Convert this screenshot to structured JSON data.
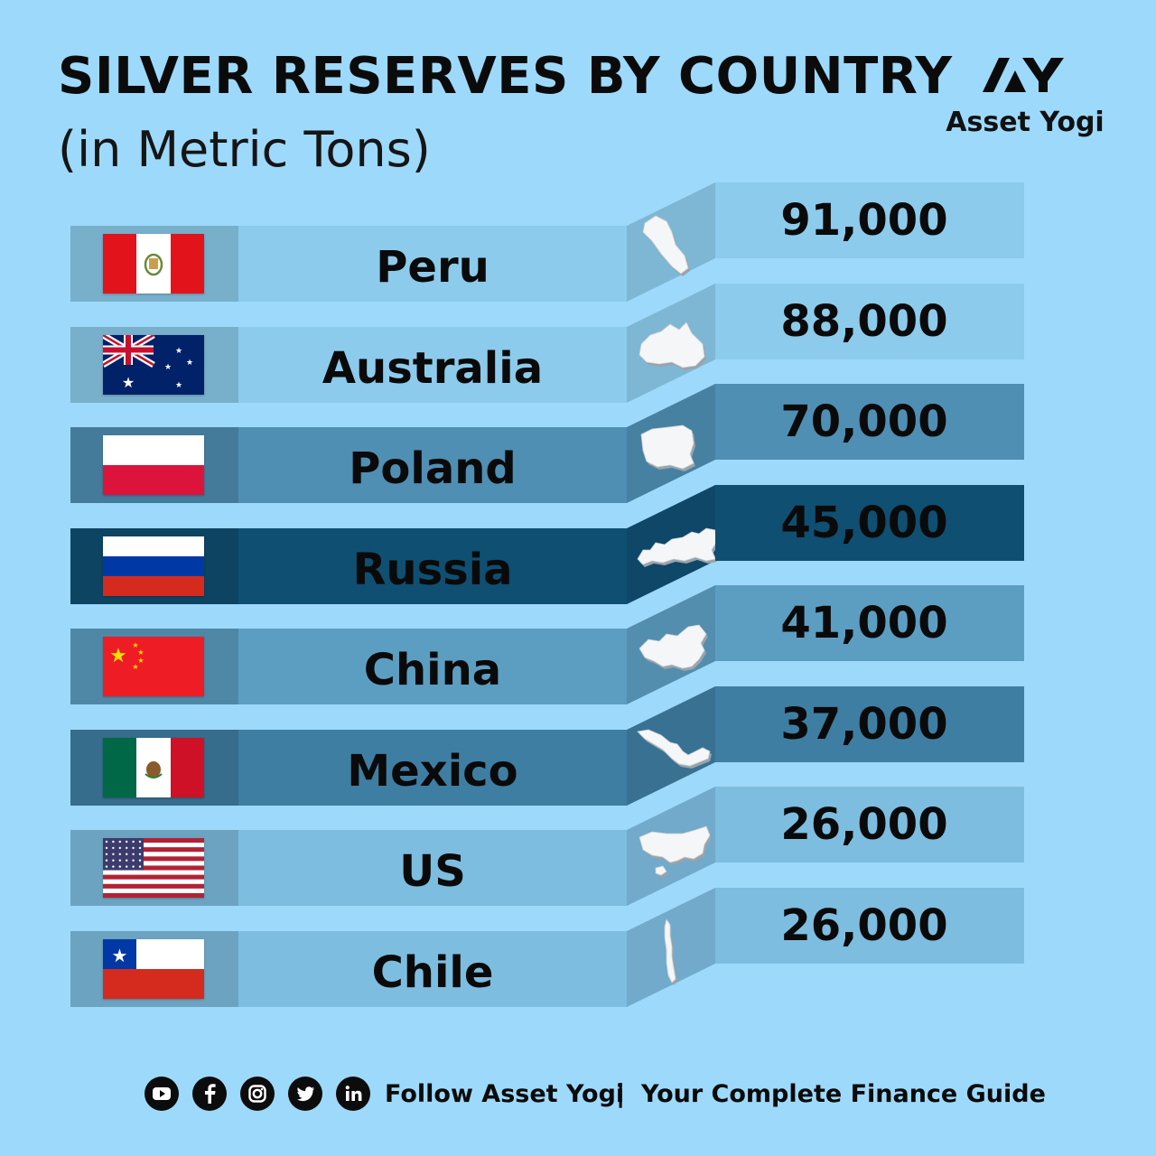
{
  "header": {
    "title": "SILVER RESERVES BY COUNTRY",
    "subtitle": "(in Metric Tons)"
  },
  "brand": {
    "name": "Asset Yogi",
    "logo_icon": "asset-yogi-logo-icon"
  },
  "colors": {
    "background": "#9dd9fa",
    "shades": [
      "#8ccbeb",
      "#8ccbeb",
      "#4f8fb4",
      "#0f4f72",
      "#5c9ec2",
      "#3f7ea3",
      "#7dbde0",
      "#7dbde0"
    ]
  },
  "chart_data": {
    "type": "table",
    "title": "SILVER RESERVES BY COUNTRY",
    "subtitle": "(in Metric Tons)",
    "categories": [
      "Peru",
      "Australia",
      "Poland",
      "Russia",
      "China",
      "Mexico",
      "US",
      "Chile"
    ],
    "values": [
      91000,
      88000,
      70000,
      45000,
      41000,
      37000,
      26000,
      26000
    ],
    "value_labels": [
      "91,000",
      "88,000",
      "70,000",
      "45,000",
      "41,000",
      "37,000",
      "26,000",
      "26,000"
    ],
    "flag_icons": [
      "peru-flag-icon",
      "australia-flag-icon",
      "poland-flag-icon",
      "russia-flag-icon",
      "china-flag-icon",
      "mexico-flag-icon",
      "us-flag-icon",
      "chile-flag-icon"
    ],
    "map_icons": [
      "peru-map-icon",
      "australia-map-icon",
      "poland-map-icon",
      "russia-map-icon",
      "china-map-icon",
      "mexico-map-icon",
      "us-map-icon",
      "chile-map-icon"
    ]
  },
  "footer": {
    "social_icons": [
      "youtube-icon",
      "facebook-icon",
      "instagram-icon",
      "twitter-icon",
      "linkedin-icon"
    ],
    "follow_text": "Follow Asset Yogi",
    "separator": "|",
    "tagline": "Your Complete Finance Guide"
  }
}
